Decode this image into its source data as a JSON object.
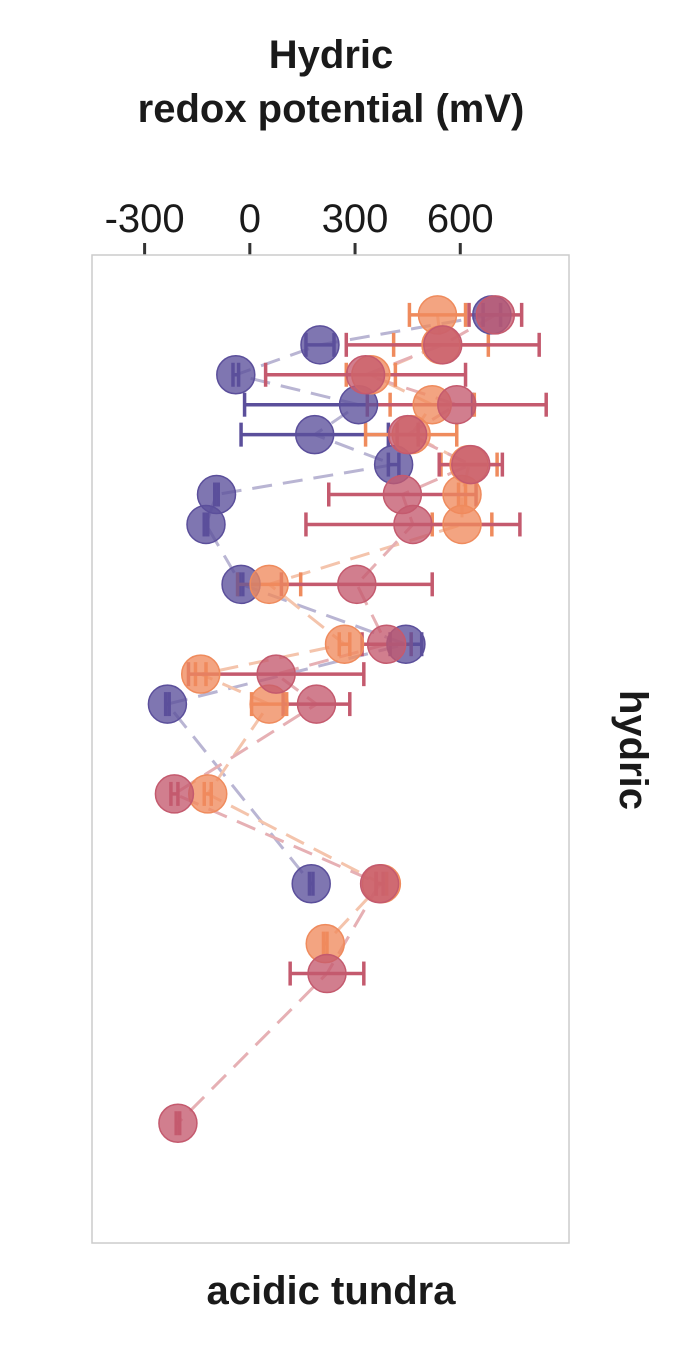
{
  "chart_data": {
    "type": "scatter",
    "title_line1": "Hydric",
    "title_line2": "redox potential (mV)",
    "xlabel": "acidic tundra",
    "strip_label": "hydric",
    "x_ticks": [
      "-300",
      "0",
      "300",
      "600"
    ],
    "x_tick_values": [
      -300,
      0,
      300,
      600
    ],
    "xlim": [
      -450,
      910
    ],
    "depth_range": [
      0,
      33
    ],
    "y_axis_visible": false,
    "grid": false,
    "legend": "none",
    "series": [
      {
        "color": "#5b4f9b",
        "line_color": "#b9b5d3",
        "points": [
          {
            "depth": 2,
            "x": 690,
            "err": 25
          },
          {
            "depth": 3,
            "x": 200,
            "err": 40
          },
          {
            "depth": 4,
            "x": -40,
            "err": 8
          },
          {
            "depth": 5,
            "x": 310,
            "err": 325
          },
          {
            "depth": 6,
            "x": 185,
            "err": 210
          },
          {
            "depth": 7,
            "x": 410,
            "err": 15
          },
          {
            "depth": 8,
            "x": -95,
            "err": 5
          },
          {
            "depth": 9,
            "x": -125,
            "err": 5
          },
          {
            "depth": 11,
            "x": -25,
            "err": 5
          },
          {
            "depth": 13,
            "x": 445,
            "err": 45
          },
          {
            "depth": 15,
            "x": -235,
            "err": 5
          },
          {
            "depth": 21,
            "x": 175,
            "err": 5
          }
        ]
      },
      {
        "color": "#ef8b5d",
        "line_color": "#f4c4ac",
        "points": [
          {
            "depth": 2,
            "x": 535,
            "err": 80
          },
          {
            "depth": 3,
            "x": 545,
            "err": 135
          },
          {
            "depth": 4,
            "x": 345,
            "err": 70
          },
          {
            "depth": 5,
            "x": 520,
            "err": 120
          },
          {
            "depth": 6,
            "x": 460,
            "err": 130
          },
          {
            "depth": 7,
            "x": 625,
            "err": 80
          },
          {
            "depth": 8,
            "x": 605,
            "err": 10
          },
          {
            "depth": 9,
            "x": 605,
            "err": 85
          },
          {
            "depth": 11,
            "x": 55,
            "err": 90
          },
          {
            "depth": 13,
            "x": 270,
            "err": 15
          },
          {
            "depth": 14,
            "x": -140,
            "err": 15
          },
          {
            "depth": 15,
            "x": 55,
            "err": 50
          },
          {
            "depth": 18,
            "x": -120,
            "err": 10
          },
          {
            "depth": 21,
            "x": 375,
            "err": 15
          },
          {
            "depth": 23,
            "x": 215,
            "err": 5
          }
        ]
      },
      {
        "color": "#c45a6e",
        "line_color": "#e6b0b4",
        "points": [
          {
            "depth": 2,
            "x": 700,
            "err": 75
          },
          {
            "depth": 3,
            "x": 550,
            "err": 275
          },
          {
            "depth": 4,
            "x": 330,
            "err": 285
          },
          {
            "depth": 5,
            "x": 590,
            "err": 255
          },
          {
            "depth": 6,
            "x": 450,
            "err": 30
          },
          {
            "depth": 7,
            "x": 630,
            "err": 90
          },
          {
            "depth": 8,
            "x": 435,
            "err": 210
          },
          {
            "depth": 9,
            "x": 465,
            "err": 305
          },
          {
            "depth": 11,
            "x": 305,
            "err": 215
          },
          {
            "depth": 13,
            "x": 390,
            "err": 70
          },
          {
            "depth": 14,
            "x": 75,
            "err": 250
          },
          {
            "depth": 15,
            "x": 190,
            "err": 95
          },
          {
            "depth": 18,
            "x": -215,
            "err": 10
          },
          {
            "depth": 21,
            "x": 370,
            "err": 10
          },
          {
            "depth": 24,
            "x": 220,
            "err": 105
          },
          {
            "depth": 29,
            "x": -205,
            "err": 5
          }
        ]
      }
    ]
  }
}
